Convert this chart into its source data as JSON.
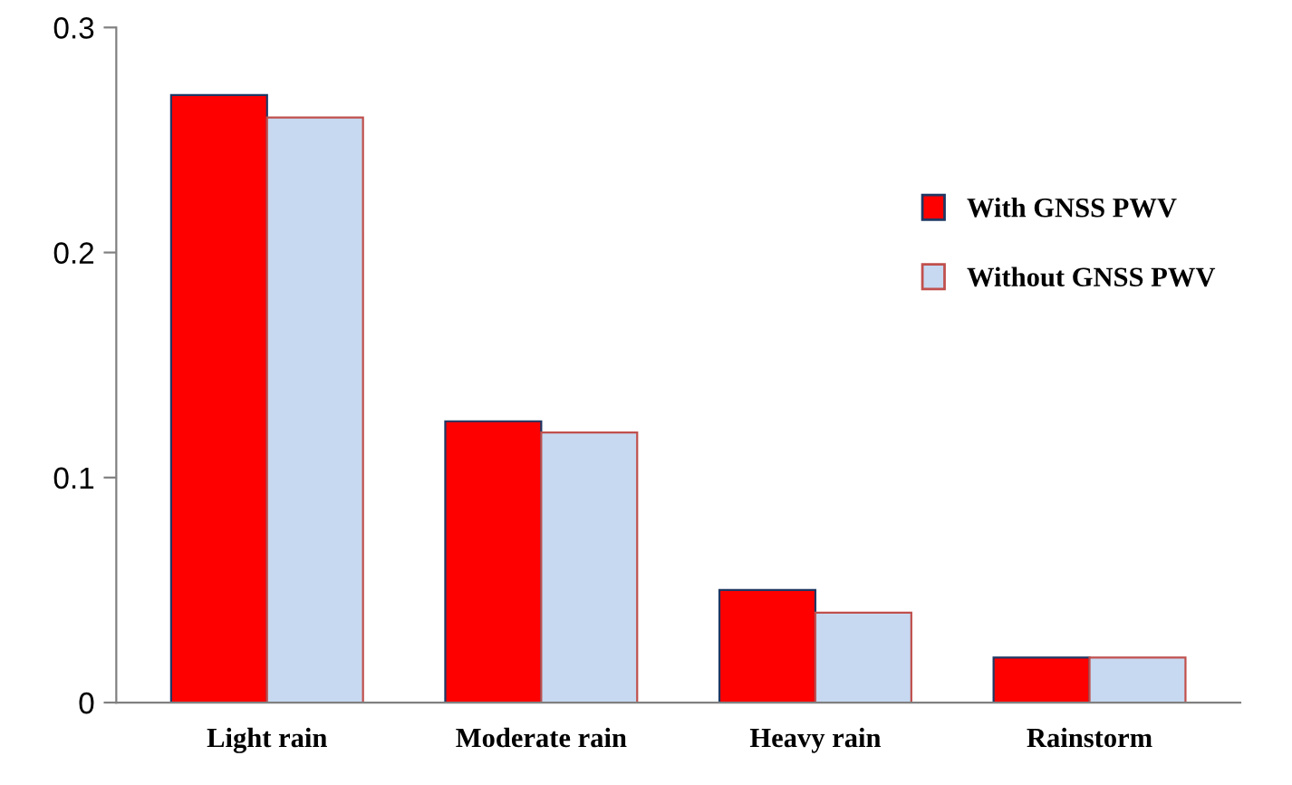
{
  "chart_data": {
    "type": "bar",
    "categories": [
      "Light rain",
      "Moderate rain",
      "Heavy rain",
      "Rainstorm"
    ],
    "series": [
      {
        "name": "With GNSS PWV",
        "color": "#ff0000",
        "values": [
          0.27,
          0.125,
          0.05,
          0.02
        ]
      },
      {
        "name": "Without GNSS PWV",
        "color": "#c6d9f1",
        "values": [
          0.26,
          0.12,
          0.04,
          0.02
        ]
      }
    ],
    "ylim": [
      0,
      0.3
    ],
    "yticks": [
      {
        "value": 0,
        "label": "0"
      },
      0.1,
      0.2,
      0.3
    ],
    "grid": false,
    "legend": "right"
  }
}
